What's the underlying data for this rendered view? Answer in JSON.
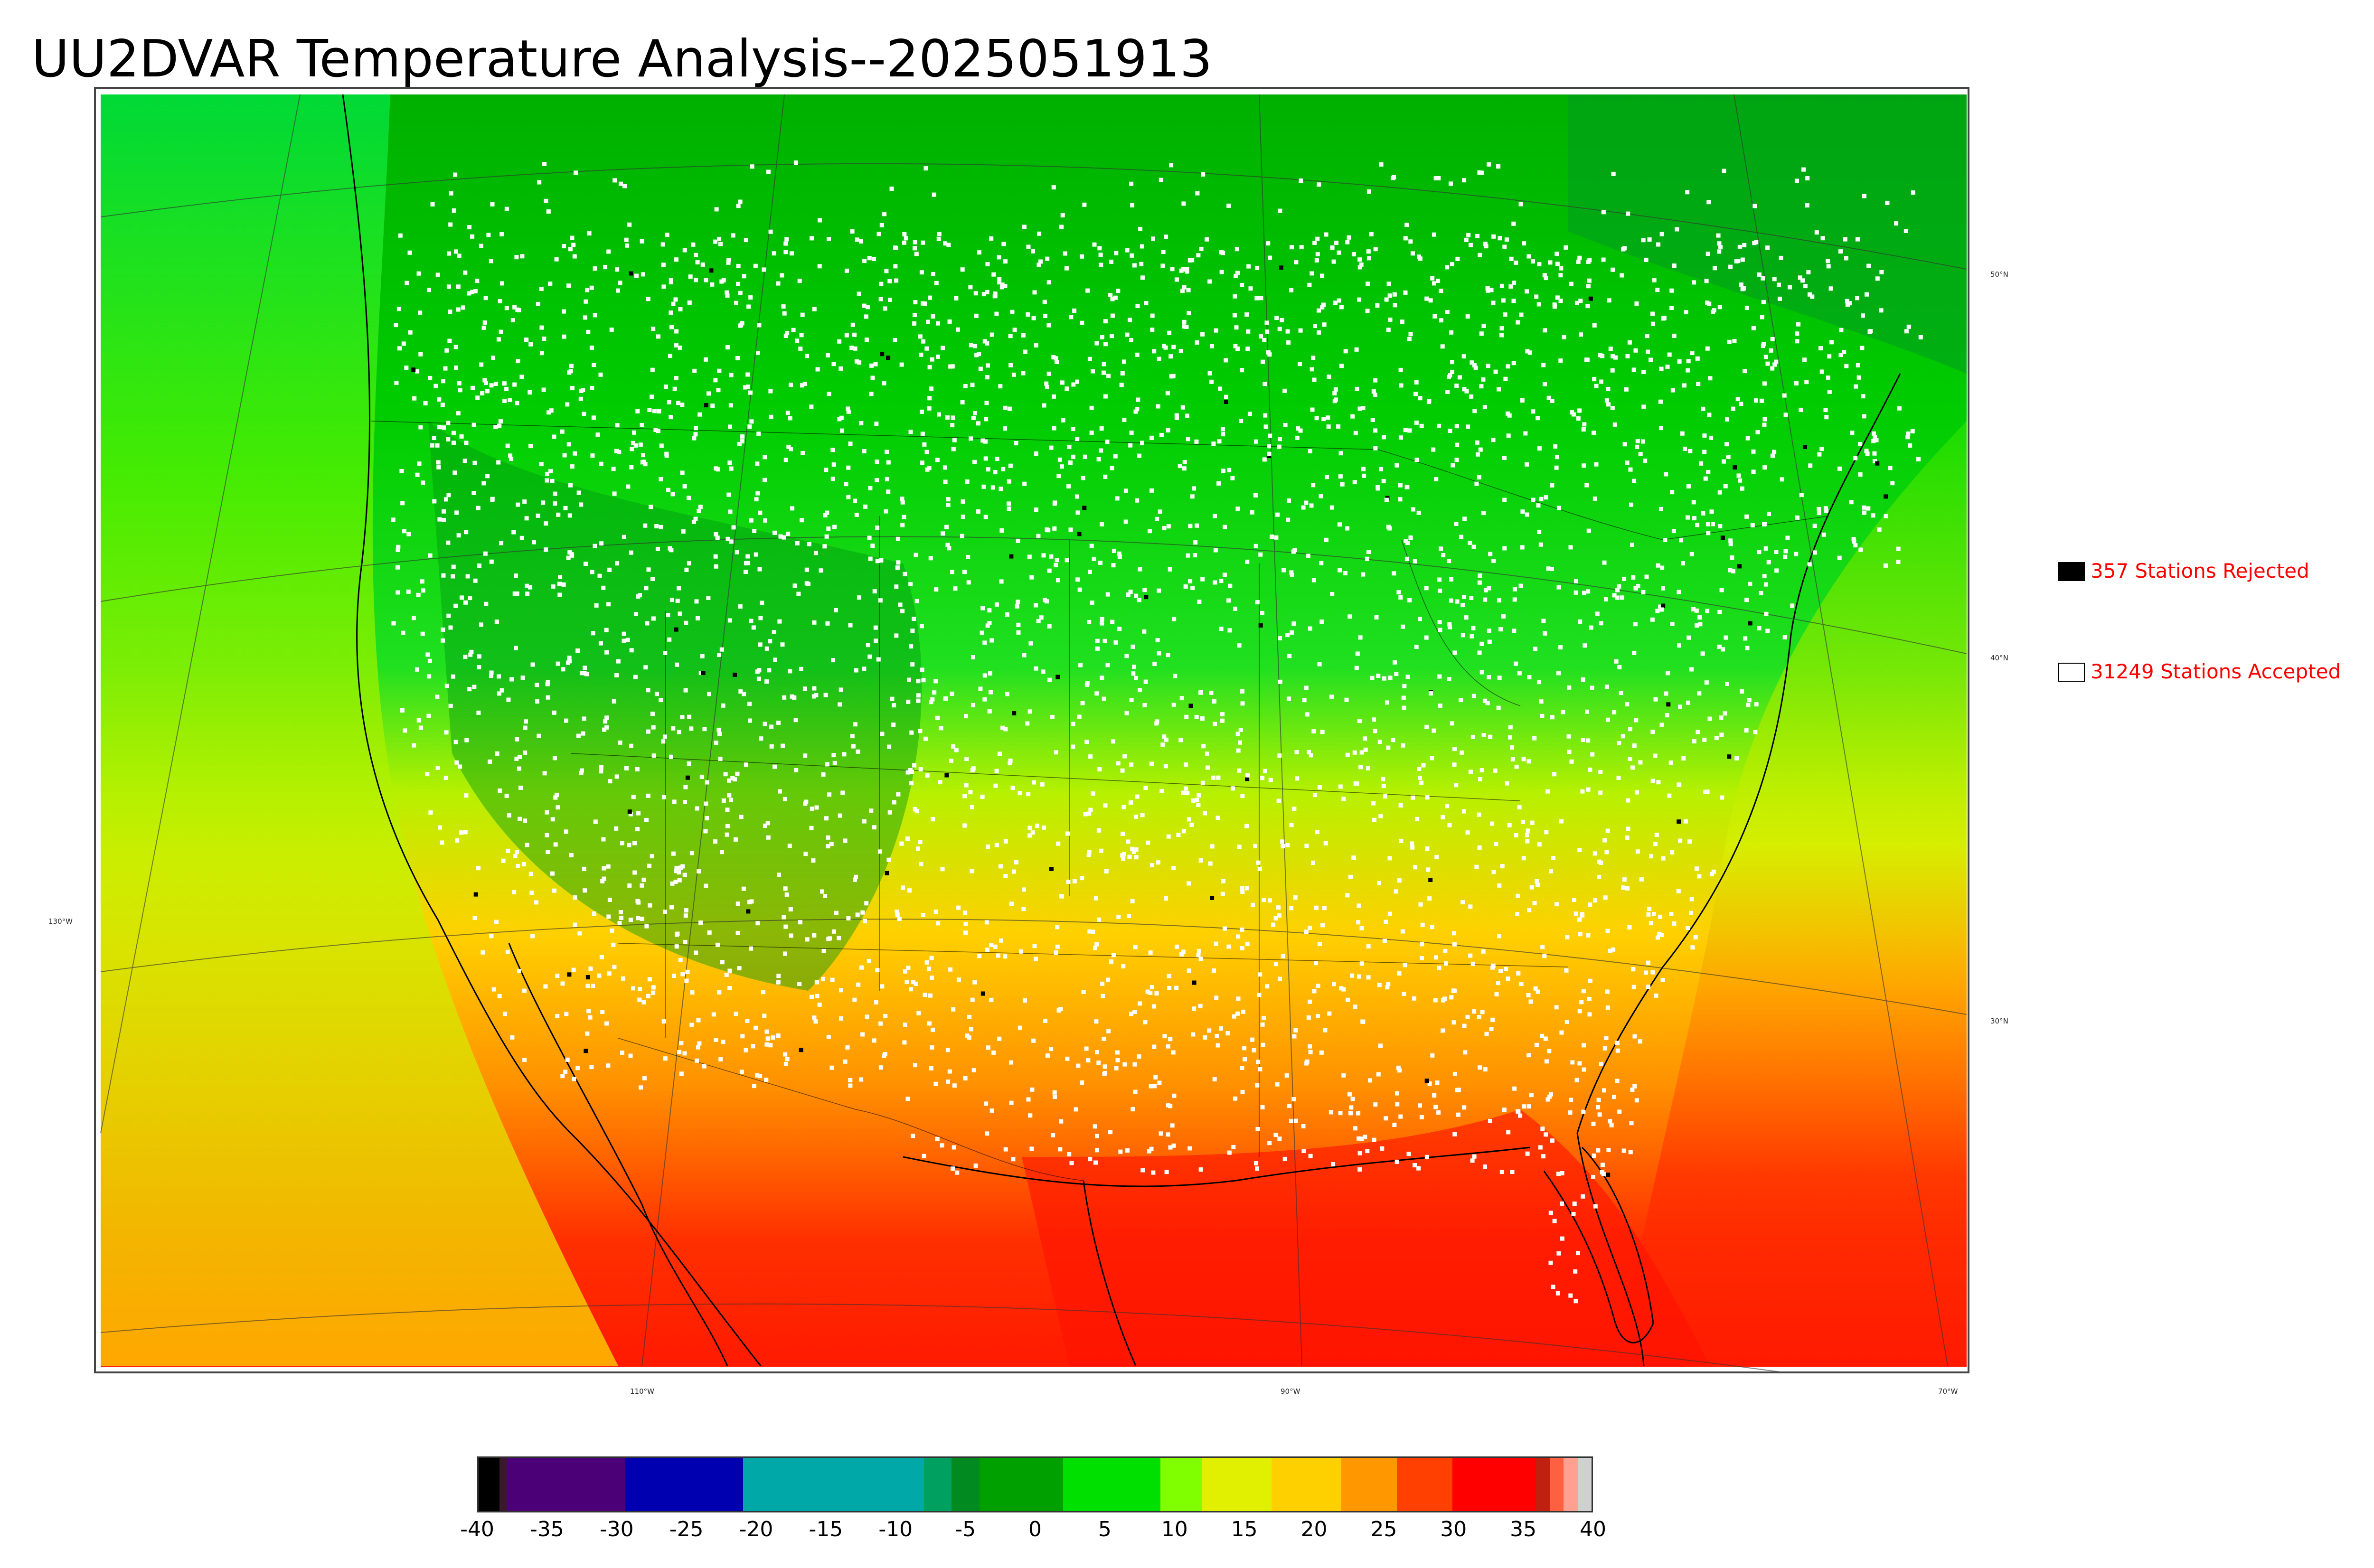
{
  "title": "UU2DVAR Temperature Analysis--2025051913",
  "legend": {
    "rejected": {
      "label": "357 Stations Rejected",
      "color": "#000000"
    },
    "accepted": {
      "label": "31249 Stations Accepted",
      "color": "#ffffff"
    }
  },
  "graticule": {
    "lat_labels": [
      "50°N",
      "40°N",
      "30°N"
    ],
    "lon_labels": [
      "130°W",
      "110°W",
      "90°W",
      "70°W"
    ]
  },
  "colorbar": {
    "ticks": [
      "-40",
      "-35",
      "-30",
      "-25",
      "-20",
      "-15",
      "-10",
      "-5",
      "0",
      "5",
      "10",
      "15",
      "20",
      "25",
      "30",
      "35",
      "40"
    ],
    "range": [
      -40,
      40
    ],
    "segments": [
      {
        "from": -40,
        "to": -38.5,
        "color": "#000000"
      },
      {
        "from": -38.5,
        "to": -38,
        "color": "#3a1a2a"
      },
      {
        "from": -38,
        "to": -29.5,
        "color": "#4b0078"
      },
      {
        "from": -29.5,
        "to": -21,
        "color": "#0000b0"
      },
      {
        "from": -21,
        "to": -8,
        "color": "#00a8a8"
      },
      {
        "from": -8,
        "to": -6,
        "color": "#00a060"
      },
      {
        "from": -6,
        "to": -4,
        "color": "#008a20"
      },
      {
        "from": -4,
        "to": 2,
        "color": "#00a000"
      },
      {
        "from": 2,
        "to": 9,
        "color": "#00e000"
      },
      {
        "from": 9,
        "to": 12,
        "color": "#80ff00"
      },
      {
        "from": 12,
        "to": 17,
        "color": "#e0f000"
      },
      {
        "from": 17,
        "to": 22,
        "color": "#ffd000"
      },
      {
        "from": 22,
        "to": 26,
        "color": "#ff9800"
      },
      {
        "from": 26,
        "to": 30,
        "color": "#ff4000"
      },
      {
        "from": 30,
        "to": 36,
        "color": "#ff0000"
      },
      {
        "from": 36,
        "to": 37,
        "color": "#c02010"
      },
      {
        "from": 37,
        "to": 38,
        "color": "#ff6040"
      },
      {
        "from": 38,
        "to": 39,
        "color": "#ffa090"
      },
      {
        "from": 39,
        "to": 40,
        "color": "#d0d0d0"
      }
    ]
  },
  "colors": {
    "cold_land": "#00a000",
    "cool": "#00e000",
    "mild": "#d8f000",
    "warm": "#ffb000",
    "hot": "#ff3000",
    "station": "#ffffff",
    "rejected_station": "#000000",
    "coastline": "#000000"
  }
}
